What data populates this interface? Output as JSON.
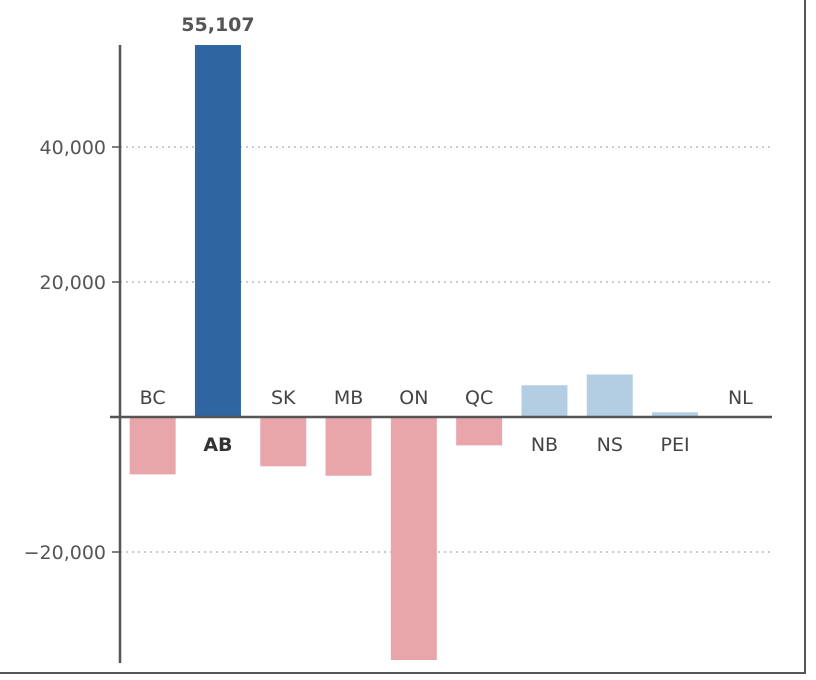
{
  "chart_data": {
    "type": "bar",
    "categories": [
      "BC",
      "AB",
      "SK",
      "MB",
      "ON",
      "QC",
      "NB",
      "NS",
      "PEI",
      "NL"
    ],
    "values": [
      -8500,
      55107,
      -7300,
      -8700,
      -36000,
      -4200,
      4700,
      6300,
      700,
      0
    ],
    "highlight_category": "AB",
    "data_labels": {
      "AB": "55,107"
    },
    "yticks": [
      -20000,
      20000,
      40000
    ],
    "ytick_labels": [
      "−20,000",
      "20,000",
      "40,000"
    ],
    "ylim": [
      -36300,
      55107
    ],
    "grid": "horizontal dotted",
    "colors": {
      "highlight": "#2f65a0",
      "positive": "#b3cde2",
      "negative": "#e8a6ab",
      "axis": "#555555",
      "grid": "#bbbbbb"
    }
  }
}
